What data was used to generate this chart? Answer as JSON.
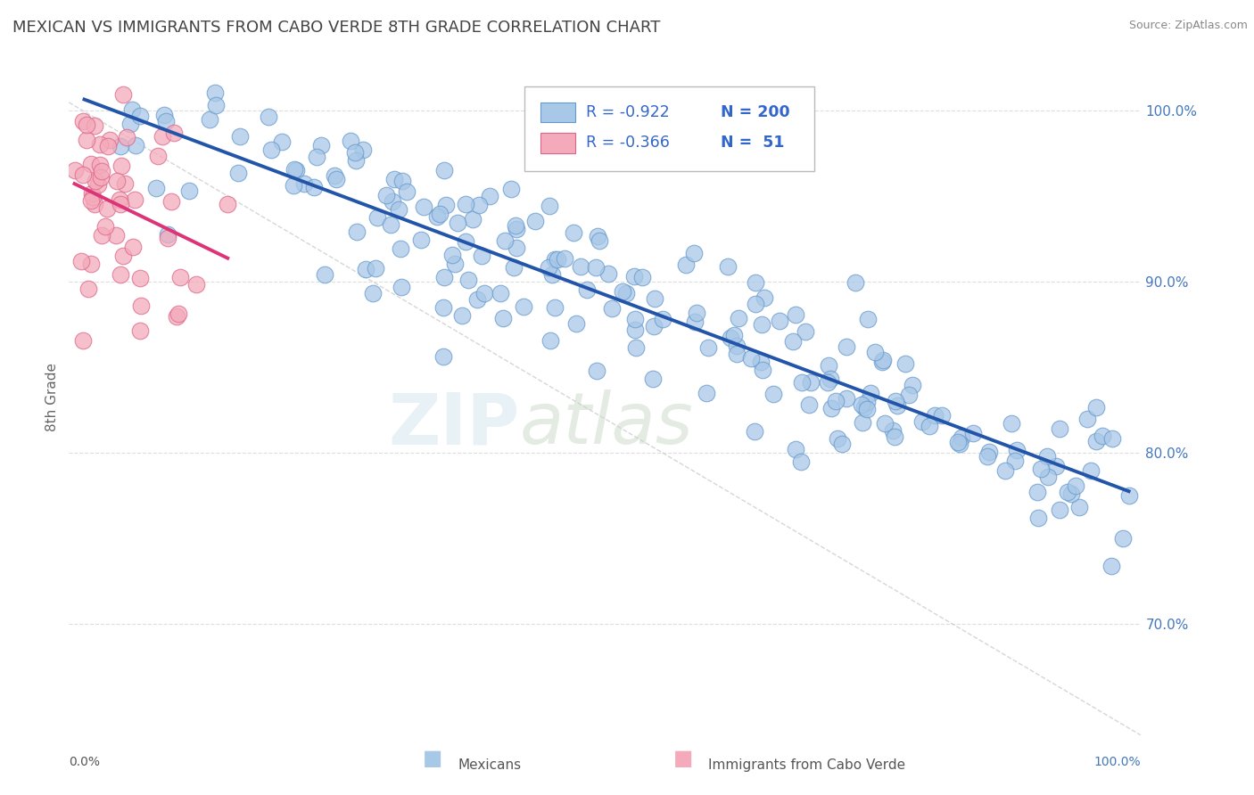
{
  "title": "MEXICAN VS IMMIGRANTS FROM CABO VERDE 8TH GRADE CORRELATION CHART",
  "source_text": "Source: ZipAtlas.com",
  "ylabel": "8th Grade",
  "ytick_values": [
    0.7,
    0.8,
    0.9,
    1.0
  ],
  "xlim": [
    0.0,
    1.0
  ],
  "ylim": [
    0.635,
    1.03
  ],
  "blue_color": "#a8c8e8",
  "blue_edge_color": "#6699cc",
  "pink_color": "#f4aabb",
  "pink_edge_color": "#dd6688",
  "blue_line_color": "#2255aa",
  "pink_line_color": "#dd3377",
  "R_blue": -0.922,
  "N_blue": 200,
  "R_pink": -0.366,
  "N_pink": 51,
  "watermark_zip": "ZIP",
  "watermark_atlas": "atlas",
  "background_color": "#ffffff",
  "grid_color": "#dddddd",
  "title_color": "#444444",
  "title_fontsize": 13,
  "source_fontsize": 9,
  "legend_r_color": "#3366cc",
  "legend_n_color": "#3366cc",
  "diag_color": "#cccccc",
  "tick_color": "#4477bb",
  "xlabel_color": "#555555",
  "xlabel_right_color": "#4477bb"
}
